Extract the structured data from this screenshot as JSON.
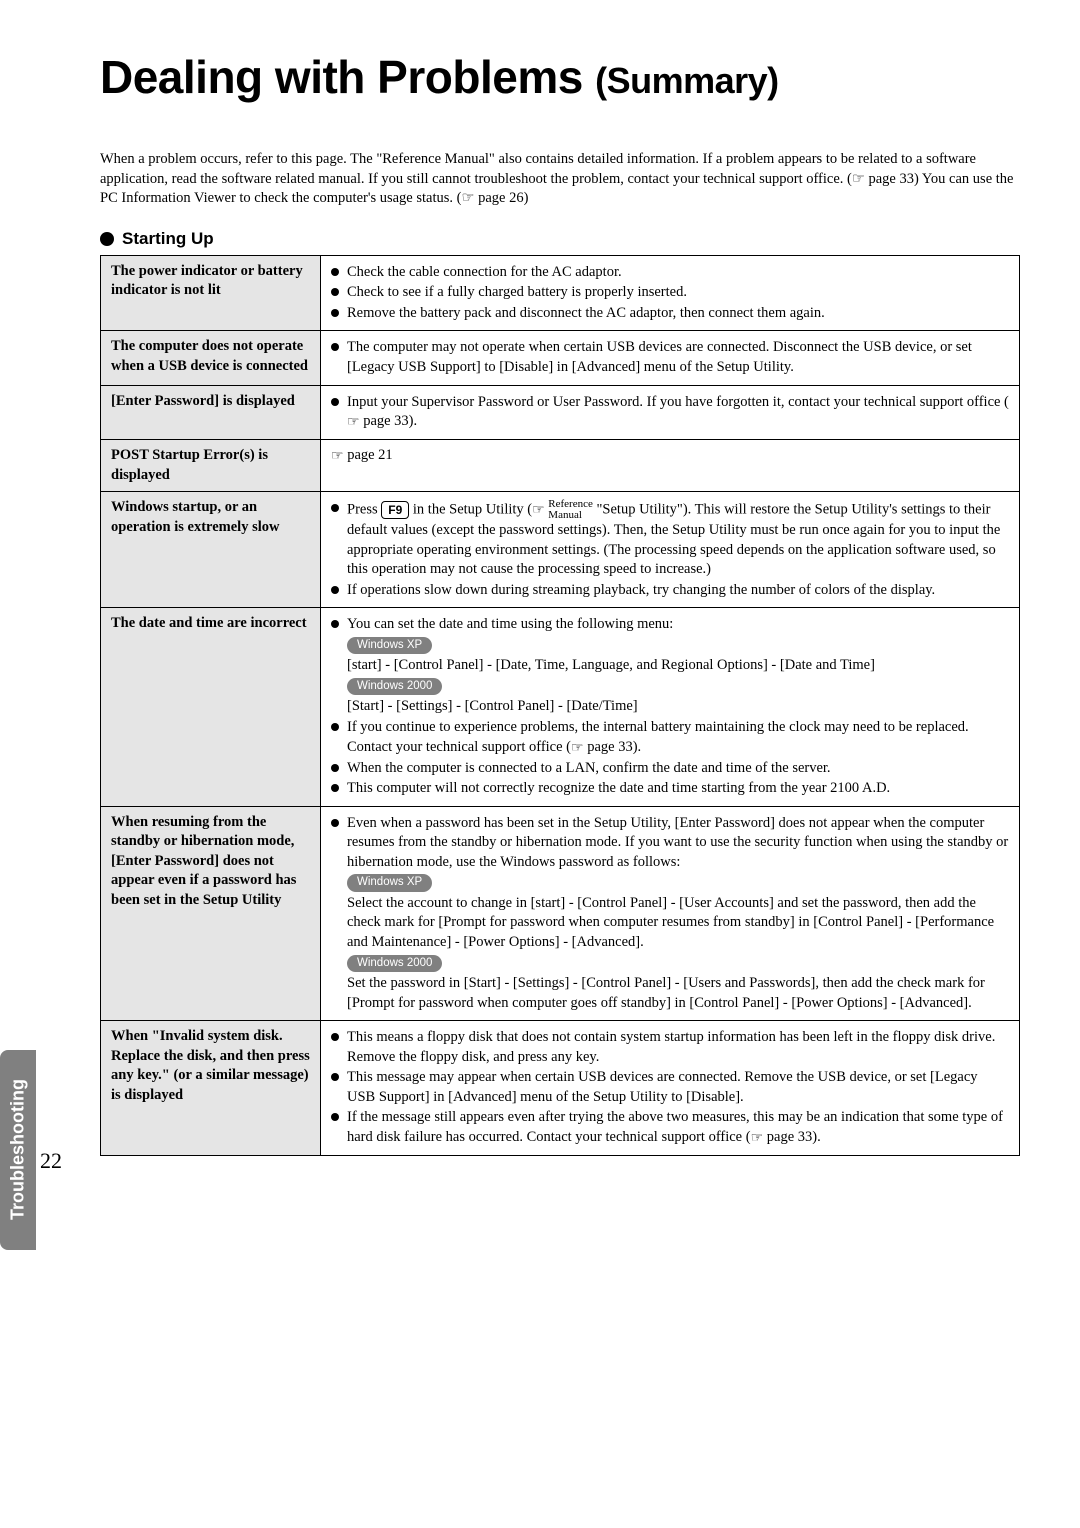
{
  "title_main": "Dealing with Problems ",
  "title_sub": "(Summary)",
  "intro": "When a problem occurs, refer to this page.  The \"Reference Manual\" also contains detailed information.  If a problem appears to be related to a software application, read the software related manual.  If you still cannot troubleshoot the problem, contact your technical support office. (☞ page 33) You can use the PC Information Viewer to check the computer's usage status. (☞ page 26)",
  "section": "Starting Up",
  "sidebar": "Troubleshooting",
  "page_number": "22",
  "colors": {
    "row_header_bg": "#e5e5e5",
    "badge_bg": "#808080",
    "sidebar_bg": "#808080"
  },
  "rows": [
    {
      "left": "The power indicator or battery indicator is not lit",
      "right_html": "<ul class='items'><li>Check the cable connection for the AC adaptor.</li><li>Check to see if a fully charged battery is properly inserted.</li><li>Remove the battery pack and disconnect the AC adaptor, then connect them again.</li></ul>"
    },
    {
      "left": "The computer does not operate when a USB device is connected",
      "right_html": "<ul class='items'><li>The computer may not operate when certain USB devices are connected.  Disconnect the USB device, or set [Legacy USB Support] to [Disable] in [Advanced] menu of the Setup Utility.</li></ul>"
    },
    {
      "left": "[Enter Password] is displayed",
      "right_html": "<ul class='items'><li>Input your Supervisor Password or User Password.  If you have forgotten it, contact your technical support office (<span class='pointer'>☞</span> page 33).</li></ul>"
    },
    {
      "left": "POST Startup Error(s) is displayed",
      "right_html": "<span class='pointer'>☞</span> page 21"
    },
    {
      "left": "Windows startup, or an operation is extremely slow",
      "right_html": "<ul class='items'><li>Press <span class='keycap'>F9</span> in the Setup Utility (<span class='pointer'>☞</span> <span class='refman'>Reference<br>Manual</span> \"Setup Utility\").   This will restore the Setup Utility's settings to their default values (except the password settings).  Then, the Setup Utility must be run once again for you to input the appropriate operating environment settings.  (The processing speed depends on the application software used, so this operation may not cause the processing speed to increase.)</li><li>If operations slow down during streaming playback, try changing the number of colors of the display.</li></ul>"
    },
    {
      "left": "The date and time are incorrect",
      "right_html": "<ul class='items'><li>You can set the date and time using the following menu:<br><span class='badge'>Windows XP</span><br>[start] - [Control Panel] - [Date, Time, Language, and Regional Options] - [Date and Time]<br><span class='badge'>Windows 2000</span><br>[Start] - [Settings] - [Control Panel] - [Date/Time]</li><li>If you continue to experience problems, the internal battery maintaining the clock may need to be replaced.  Contact your technical support office (<span class='pointer'>☞</span> page 33).</li><li>When the computer is connected to a LAN, confirm the date and time of the server.</li><li>This computer will not correctly recognize the date and time starting from the year 2100 A.D.</li></ul>"
    },
    {
      "left": "When resuming from the standby or hibernation mode, [Enter Password] does not appear even if a password has been set in the Setup Utility",
      "right_html": "<ul class='items'><li>Even when a password has been set in the Setup Utility, [Enter Password] does not appear when the computer resumes from the standby or hibernation mode. If you want to use the security function when using the standby or hibernation mode, use the Windows password as follows:<br><span class='badge'>Windows XP</span><br>Select the account to change in [start] - [Control Panel] - [User Accounts] and set the password, then add the check mark for [Prompt for password when computer resumes from standby] in [Control Panel] - [Performance and Maintenance] - [Power Options] - [Advanced].<br><span class='badge'>Windows 2000</span><br>Set the password in [Start] - [Settings] - [Control Panel] - [Users and Passwords], then add the check mark for [Prompt for password when computer goes off standby] in [Control Panel] - [Power Options] - [Advanced].</li></ul>"
    },
    {
      "left": "When \"Invalid system disk. Replace the disk, and then press any key.\" (or a similar message) is displayed",
      "right_html": "<ul class='items'><li>This means a floppy disk that does not contain system startup information has been left in the floppy disk drive.  Remove the floppy disk, and press any key.</li><li>This message may appear when certain USB devices are connected.  Remove the USB device, or set [Legacy USB Support] in [Advanced] menu of the Setup Utility to [Disable].</li><li>If the message still appears even after trying the above two measures, this may be an indication that some type of hard disk failure has occurred.  Contact your technical support office (<span class='pointer'>☞</span> page 33).</li></ul>"
    }
  ]
}
